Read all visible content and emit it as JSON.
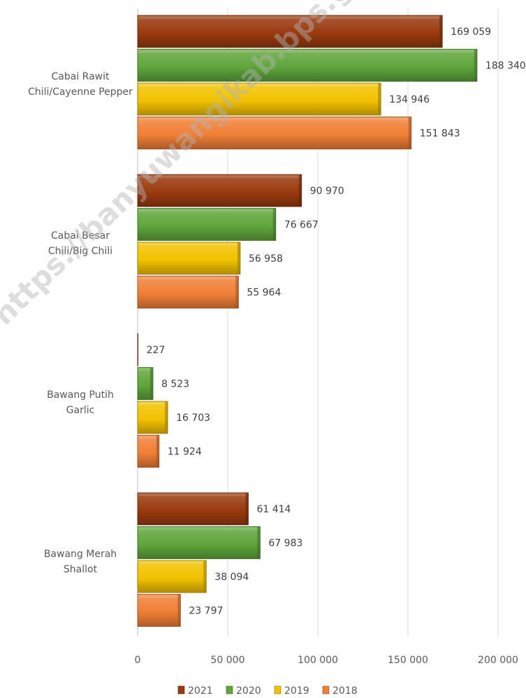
{
  "chart_data": {
    "type": "bar",
    "orientation": "horizontal",
    "categories": [
      [
        "Cabai Rawit",
        "Chili/Cayenne Pepper"
      ],
      [
        "Cabai Besar",
        "Chili/Big Chili"
      ],
      [
        "Bawang Putih",
        "Garlic"
      ],
      [
        "Bawang Merah",
        "Shallot"
      ]
    ],
    "series": [
      {
        "name": "2021",
        "color": "#9A3A0E",
        "values": [
          169059,
          90970,
          227,
          61414
        ],
        "labels": [
          "169 059",
          "90 970",
          "227",
          "61 414"
        ]
      },
      {
        "name": "2020",
        "color": "#5FA63B",
        "values": [
          188340,
          76667,
          8523,
          67983
        ],
        "labels": [
          "188 340",
          "76 667",
          "8 523",
          "67 983"
        ]
      },
      {
        "name": "2019",
        "color": "#F2C200",
        "values": [
          134946,
          56958,
          16703,
          38094
        ],
        "labels": [
          "134 946",
          "56 958",
          "16 703",
          "38 094"
        ]
      },
      {
        "name": "2018",
        "color": "#F07F36",
        "values": [
          151843,
          55964,
          11924,
          23797
        ],
        "labels": [
          "151 843",
          "55 964",
          "11 924",
          "23 797"
        ]
      }
    ],
    "xlim": [
      0,
      200000
    ],
    "ticks": [
      0,
      50000,
      100000,
      150000,
      200000
    ],
    "tick_labels": [
      "0",
      "50 000",
      "100 000",
      "150 000",
      "200 000"
    ],
    "grid": true,
    "legend": "bottom"
  },
  "watermark": "https://banyuwangikab.bps.go.id"
}
